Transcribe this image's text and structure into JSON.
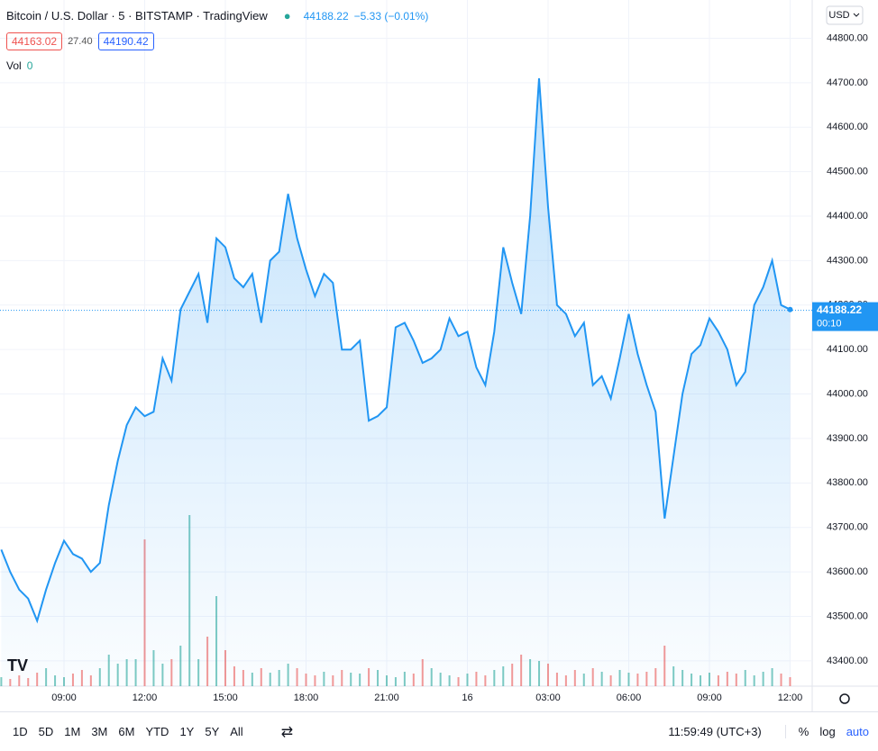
{
  "header": {
    "symbol": "Bitcoin / U.S. Dollar · 5 · BITSTAMP · TradingView",
    "last": "44188.22",
    "change": "−5.33 (−0.01%)",
    "bid": "44163.02",
    "spread": "27.40",
    "ask": "44190.42",
    "vol_label": "Vol",
    "vol_value": "0",
    "currency": "USD"
  },
  "chart_data": {
    "type": "area",
    "color": "#2196f3",
    "categories": [
      null,
      null,
      null,
      null,
      null,
      null,
      null,
      "09:00",
      null,
      null,
      null,
      null,
      null,
      null,
      null,
      null,
      "12:00",
      null,
      null,
      null,
      null,
      null,
      null,
      null,
      null,
      "15:00",
      null,
      null,
      null,
      null,
      null,
      null,
      null,
      null,
      "18:00",
      null,
      null,
      null,
      null,
      null,
      null,
      null,
      null,
      "21:00",
      null,
      null,
      null,
      null,
      null,
      null,
      null,
      null,
      "16",
      null,
      null,
      null,
      null,
      null,
      null,
      null,
      null,
      "03:00",
      null,
      null,
      null,
      null,
      null,
      null,
      null,
      null,
      "06:00",
      null,
      null,
      null,
      null,
      null,
      null,
      null,
      null,
      "09:00",
      null,
      null,
      null,
      null,
      null,
      null,
      null,
      null,
      "12:00"
    ],
    "values": [
      43650,
      43600,
      43560,
      43540,
      43490,
      43560,
      43620,
      43670,
      43640,
      43630,
      43600,
      43620,
      43750,
      43850,
      43930,
      43970,
      43950,
      43960,
      44080,
      44030,
      44190,
      44230,
      44270,
      44160,
      44350,
      44330,
      44260,
      44240,
      44270,
      44160,
      44300,
      44320,
      44450,
      44350,
      44280,
      44220,
      44270,
      44250,
      44100,
      44100,
      44120,
      43940,
      43950,
      43970,
      44150,
      44160,
      44120,
      44070,
      44080,
      44100,
      44170,
      44130,
      44140,
      44060,
      44020,
      44140,
      44330,
      44250,
      44180,
      44400,
      44710,
      44420,
      44200,
      44180,
      44130,
      44160,
      44020,
      44040,
      43990,
      44080,
      44180,
      44090,
      44020,
      43960,
      43720,
      43860,
      44000,
      44090,
      44110,
      44170,
      44140,
      44100,
      44020,
      44050,
      44200,
      44240,
      44300,
      44200,
      44190
    ],
    "volume": [
      10,
      8,
      12,
      9,
      15,
      20,
      12,
      10,
      14,
      18,
      12,
      20,
      35,
      25,
      30,
      30,
      163,
      40,
      25,
      30,
      45,
      190,
      30,
      55,
      100,
      40,
      22,
      18,
      15,
      20,
      15,
      18,
      25,
      20,
      14,
      12,
      16,
      12,
      18,
      15,
      14,
      20,
      18,
      12,
      10,
      16,
      14,
      30,
      20,
      15,
      12,
      10,
      14,
      16,
      12,
      18,
      22,
      25,
      35,
      30,
      28,
      25,
      15,
      12,
      18,
      14,
      20,
      16,
      12,
      18,
      15,
      14,
      16,
      20,
      45,
      22,
      18,
      14,
      12,
      15,
      12,
      16,
      14,
      18,
      12,
      16,
      20,
      14,
      10
    ],
    "volume_colors": {
      "up": "#26a69a",
      "down": "#ef5350"
    },
    "vol_ylim": [
      0,
      260
    ],
    "ylim": [
      43343,
      44886
    ],
    "yticks": [
      {
        "value": 43400,
        "label": "43400.00"
      },
      {
        "value": 43500,
        "label": "43500.00"
      },
      {
        "value": 43600,
        "label": "43600.00"
      },
      {
        "value": 43700,
        "label": "43700.00"
      },
      {
        "value": 43800,
        "label": "43800.00"
      },
      {
        "value": 43900,
        "label": "43900.00"
      },
      {
        "value": 44000,
        "label": "44000.00"
      },
      {
        "value": 44100,
        "label": "44100.00"
      },
      {
        "value": 44200,
        "label": "44200.00"
      },
      {
        "value": 44300,
        "label": "44300.00"
      },
      {
        "value": 44400,
        "label": "44400.00"
      },
      {
        "value": 44500,
        "label": "44500.00"
      },
      {
        "value": 44600,
        "label": "44600.00"
      },
      {
        "value": 44700,
        "label": "44700.00"
      },
      {
        "value": 44800,
        "label": "44800.00"
      }
    ],
    "last_value": 44188.22,
    "countdown": "00:10",
    "grid": true
  },
  "toolbar": {
    "ranges": [
      "1D",
      "5D",
      "1M",
      "3M",
      "6M",
      "YTD",
      "1Y",
      "5Y",
      "All"
    ],
    "time": "11:59:49 (UTC+3)",
    "percent": "%",
    "log": "log",
    "auto": "auto"
  }
}
